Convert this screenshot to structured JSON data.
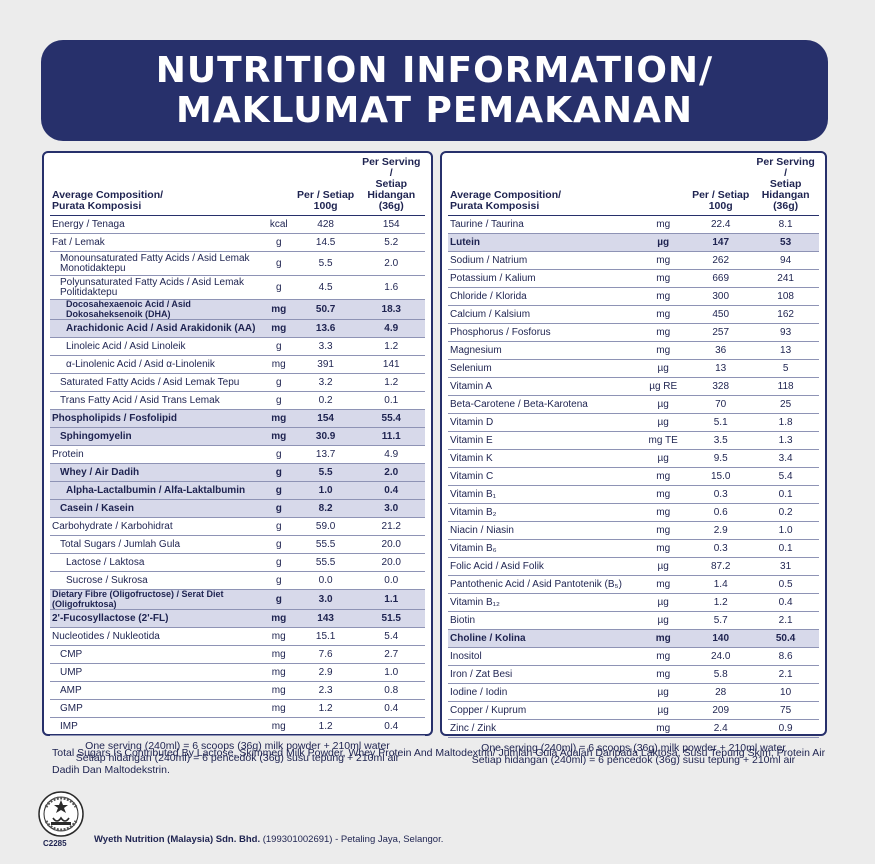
{
  "header": {
    "title_line1": "NUTRITION INFORMATION/",
    "title_line2": "MAKLUMAT PEMAKANAN"
  },
  "table_header": {
    "name_line1": "Average Composition/",
    "name_line2": "Purata Komposisi",
    "per100": "Per / Setiap 100g",
    "serving_line1": "Per Serving /",
    "serving_line2": "Setiap Hidangan",
    "serving_line3": "(36g)"
  },
  "left_rows": [
    {
      "name": "Energy / Tenaga",
      "unit": "kcal",
      "per100": "428",
      "serving": "154",
      "style": ""
    },
    {
      "name": "Fat / Lemak",
      "unit": "g",
      "per100": "14.5",
      "serving": "5.2",
      "style": ""
    },
    {
      "name": "Monounsaturated Fatty Acids / Asid Lemak Monotidaktepu",
      "unit": "g",
      "per100": "5.5",
      "serving": "2.0",
      "style": "tall ind1"
    },
    {
      "name": "Polyunsaturated Fatty Acids / Asid Lemak Politidaktepu",
      "unit": "g",
      "per100": "4.5",
      "serving": "1.6",
      "style": "tall ind1"
    },
    {
      "name": "Docosahexaenoic Acid / Asid Dokosaheksenoik (DHA)",
      "unit": "mg",
      "per100": "50.7",
      "serving": "18.3",
      "style": "hl ind2 small"
    },
    {
      "name": "Arachidonic Acid / Asid Arakidonik (AA)",
      "unit": "mg",
      "per100": "13.6",
      "serving": "4.9",
      "style": "hl ind2"
    },
    {
      "name": "Linoleic Acid / Asid Linoleik",
      "unit": "g",
      "per100": "3.3",
      "serving": "1.2",
      "style": "ind2"
    },
    {
      "name": "α-Linolenic Acid / Asid α-Linolenik",
      "unit": "mg",
      "per100": "391",
      "serving": "141",
      "style": "ind2"
    },
    {
      "name": "Saturated Fatty Acids / Asid Lemak Tepu",
      "unit": "g",
      "per100": "3.2",
      "serving": "1.2",
      "style": "ind1"
    },
    {
      "name": "Trans Fatty Acid / Asid Trans Lemak",
      "unit": "g",
      "per100": "0.2",
      "serving": "0.1",
      "style": "ind1"
    },
    {
      "name": "Phospholipids / Fosfolipid",
      "unit": "mg",
      "per100": "154",
      "serving": "55.4",
      "style": "hl"
    },
    {
      "name": "Sphingomyelin",
      "unit": "mg",
      "per100": "30.9",
      "serving": "11.1",
      "style": "hl ind1"
    },
    {
      "name": "Protein",
      "unit": "g",
      "per100": "13.7",
      "serving": "4.9",
      "style": ""
    },
    {
      "name": "Whey / Air Dadih",
      "unit": "g",
      "per100": "5.5",
      "serving": "2.0",
      "style": "hl ind1"
    },
    {
      "name": "Alpha-Lactalbumin / Alfa-Laktalbumin",
      "unit": "g",
      "per100": "1.0",
      "serving": "0.4",
      "style": "hl ind2"
    },
    {
      "name": "Casein / Kasein",
      "unit": "g",
      "per100": "8.2",
      "serving": "3.0",
      "style": "hl ind1"
    },
    {
      "name": "Carbohydrate / Karbohidrat",
      "unit": "g",
      "per100": "59.0",
      "serving": "21.2",
      "style": ""
    },
    {
      "name": "Total Sugars / Jumlah Gula",
      "unit": "g",
      "per100": "55.5",
      "serving": "20.0",
      "style": "ind1"
    },
    {
      "name": "Lactose / Laktosa",
      "unit": "g",
      "per100": "55.5",
      "serving": "20.0",
      "style": "ind2"
    },
    {
      "name": "Sucrose / Sukrosa",
      "unit": "g",
      "per100": "0.0",
      "serving": "0.0",
      "style": "ind2"
    },
    {
      "name": "Dietary Fibre (Oligofructose) / Serat Diet (Oligofruktosa)",
      "unit": "g",
      "per100": "3.0",
      "serving": "1.1",
      "style": "hl small"
    },
    {
      "name": "2'-Fucosyllactose (2'-FL)",
      "unit": "mg",
      "per100": "143",
      "serving": "51.5",
      "style": "hl"
    },
    {
      "name": "Nucleotides / Nukleotida",
      "unit": "mg",
      "per100": "15.1",
      "serving": "5.4",
      "style": ""
    },
    {
      "name": "CMP",
      "unit": "mg",
      "per100": "7.6",
      "serving": "2.7",
      "style": "ind1"
    },
    {
      "name": "UMP",
      "unit": "mg",
      "per100": "2.9",
      "serving": "1.0",
      "style": "ind1"
    },
    {
      "name": "AMP",
      "unit": "mg",
      "per100": "2.3",
      "serving": "0.8",
      "style": "ind1"
    },
    {
      "name": "GMP",
      "unit": "mg",
      "per100": "1.2",
      "serving": "0.4",
      "style": "ind1"
    },
    {
      "name": "IMP",
      "unit": "mg",
      "per100": "1.2",
      "serving": "0.4",
      "style": "ind1"
    }
  ],
  "right_rows": [
    {
      "name": "Taurine / Taurina",
      "unit": "mg",
      "per100": "22.4",
      "serving": "8.1",
      "style": ""
    },
    {
      "name": "Lutein",
      "unit": "µg",
      "per100": "147",
      "serving": "53",
      "style": "hl"
    },
    {
      "name": "Sodium / Natrium",
      "unit": "mg",
      "per100": "262",
      "serving": "94",
      "style": ""
    },
    {
      "name": "Potassium / Kalium",
      "unit": "mg",
      "per100": "669",
      "serving": "241",
      "style": ""
    },
    {
      "name": "Chloride / Klorida",
      "unit": "mg",
      "per100": "300",
      "serving": "108",
      "style": ""
    },
    {
      "name": "Calcium / Kalsium",
      "unit": "mg",
      "per100": "450",
      "serving": "162",
      "style": ""
    },
    {
      "name": "Phosphorus / Fosforus",
      "unit": "mg",
      "per100": "257",
      "serving": "93",
      "style": ""
    },
    {
      "name": "Magnesium",
      "unit": "mg",
      "per100": "36",
      "serving": "13",
      "style": ""
    },
    {
      "name": "Selenium",
      "unit": "µg",
      "per100": "13",
      "serving": "5",
      "style": ""
    },
    {
      "name": "Vitamin A",
      "unit": "µg RE",
      "per100": "328",
      "serving": "118",
      "style": ""
    },
    {
      "name": "Beta-Carotene / Beta-Karotena",
      "unit": "µg",
      "per100": "70",
      "serving": "25",
      "style": ""
    },
    {
      "name": "Vitamin D",
      "unit": "µg",
      "per100": "5.1",
      "serving": "1.8",
      "style": ""
    },
    {
      "name": "Vitamin E",
      "unit": "mg TE",
      "per100": "3.5",
      "serving": "1.3",
      "style": ""
    },
    {
      "name": "Vitamin K",
      "unit": "µg",
      "per100": "9.5",
      "serving": "3.4",
      "style": ""
    },
    {
      "name": "Vitamin C",
      "unit": "mg",
      "per100": "15.0",
      "serving": "5.4",
      "style": ""
    },
    {
      "name": "Vitamin B₁",
      "unit": "mg",
      "per100": "0.3",
      "serving": "0.1",
      "style": ""
    },
    {
      "name": "Vitamin B₂",
      "unit": "mg",
      "per100": "0.6",
      "serving": "0.2",
      "style": ""
    },
    {
      "name": "Niacin / Niasin",
      "unit": "mg",
      "per100": "2.9",
      "serving": "1.0",
      "style": ""
    },
    {
      "name": "Vitamin B₆",
      "unit": "mg",
      "per100": "0.3",
      "serving": "0.1",
      "style": ""
    },
    {
      "name": "Folic Acid / Asid Folik",
      "unit": "µg",
      "per100": "87.2",
      "serving": "31",
      "style": ""
    },
    {
      "name": "Pantothenic Acid / Asid Pantotenik (B₅)",
      "unit": "mg",
      "per100": "1.4",
      "serving": "0.5",
      "style": ""
    },
    {
      "name": "Vitamin B₁₂",
      "unit": "µg",
      "per100": "1.2",
      "serving": "0.4",
      "style": ""
    },
    {
      "name": "Biotin",
      "unit": "µg",
      "per100": "5.7",
      "serving": "2.1",
      "style": ""
    },
    {
      "name": "Choline / Kolina",
      "unit": "mg",
      "per100": "140",
      "serving": "50.4",
      "style": "hl"
    },
    {
      "name": "Inositol",
      "unit": "mg",
      "per100": "24.0",
      "serving": "8.6",
      "style": ""
    },
    {
      "name": "Iron / Zat Besi",
      "unit": "mg",
      "per100": "5.8",
      "serving": "2.1",
      "style": ""
    },
    {
      "name": "Iodine / Iodin",
      "unit": "µg",
      "per100": "28",
      "serving": "10",
      "style": ""
    },
    {
      "name": "Copper / Kuprum",
      "unit": "µg",
      "per100": "209",
      "serving": "75",
      "style": ""
    },
    {
      "name": "Zinc / Zink",
      "unit": "mg",
      "per100": "2.4",
      "serving": "0.9",
      "style": ""
    }
  ],
  "serving_note": {
    "line1": "One serving (240ml) = 6 scoops (36g) milk powder + 210ml water",
    "line2": "Setiap hidangan (240ml) = 6 pencedok (36g) susu tepung + 210ml air"
  },
  "footnote": "Total Sugars Is Contributed By Lactose, Skimmed Milk Powder, Whey Protein And Maltodextrin/ Jumlah Gula Adalah Daripada Laktosa, Susu Tepung Skim, Protein Air Dadih Dan Maltodekstrin.",
  "halal_code": "C2285",
  "company": {
    "name": "Wyeth Nutrition (Malaysia) Sdn. Bhd.",
    "details": " (199301002691) - Petaling Jaya, Selangor."
  },
  "colors": {
    "banner": "#27306b",
    "highlight": "#d7d9ea",
    "text": "#1e2350"
  }
}
